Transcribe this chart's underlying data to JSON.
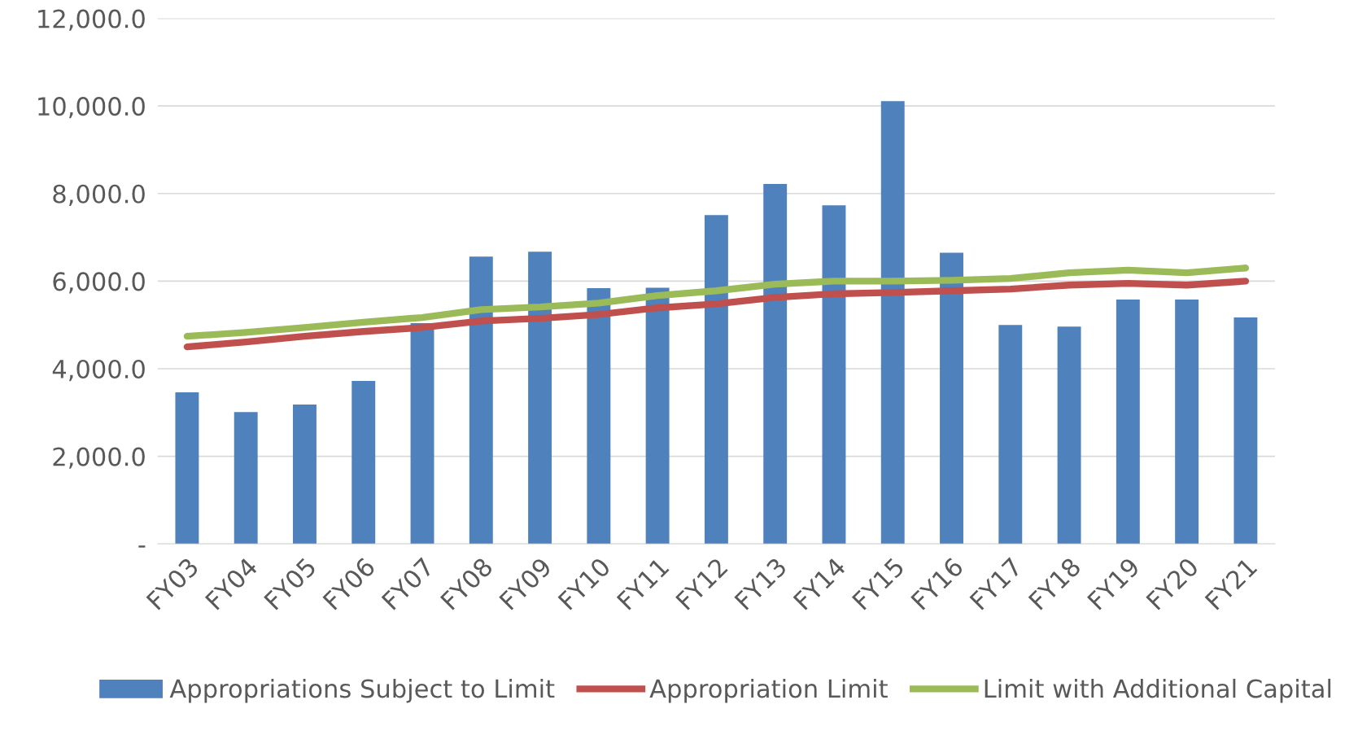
{
  "chart_data": {
    "type": "bar",
    "categories": [
      "FY03",
      "FY04",
      "FY05",
      "FY06",
      "FY07",
      "FY08",
      "FY09",
      "FY10",
      "FY11",
      "FY12",
      "FY13",
      "FY14",
      "FY15",
      "FY16",
      "FY17",
      "FY18",
      "FY19",
      "FY20",
      "FY21"
    ],
    "series": [
      {
        "name": "Appropriations Subject to Limit",
        "color": "#4f81bd",
        "values": [
          3460,
          3010,
          3180,
          3720,
          5040,
          6560,
          6670,
          5840,
          5850,
          7510,
          8220,
          7730,
          10110,
          6650,
          5000,
          4960,
          5580,
          5580,
          5170
        ]
      },
      {
        "name": "Appropriation Limit",
        "type": "line",
        "color": "#c0504d",
        "values": [
          4500,
          4610,
          4740,
          4850,
          4940,
          5090,
          5150,
          5240,
          5390,
          5480,
          5630,
          5710,
          5740,
          5780,
          5820,
          5910,
          5950,
          5910,
          6000
        ]
      },
      {
        "name": "Limit with Additional Capital",
        "type": "line",
        "color": "#9bbb59",
        "values": [
          4740,
          4830,
          4940,
          5060,
          5170,
          5350,
          5410,
          5500,
          5670,
          5780,
          5930,
          6000,
          6000,
          6020,
          6060,
          6190,
          6250,
          6190,
          6300
        ]
      }
    ],
    "ylim": [
      0,
      12000
    ],
    "yticks": [
      {
        "value": 0,
        "label": "-"
      },
      {
        "value": 2000,
        "label": "2,000.0"
      },
      {
        "value": 4000,
        "label": "4,000.0"
      },
      {
        "value": 6000,
        "label": "6,000.0"
      },
      {
        "value": 8000,
        "label": "8,000.0"
      },
      {
        "value": 10000,
        "label": "10,000.0"
      },
      {
        "value": 12000,
        "label": "12,000.0"
      }
    ],
    "grid": "y",
    "legend": "bottom",
    "marker": "none"
  }
}
